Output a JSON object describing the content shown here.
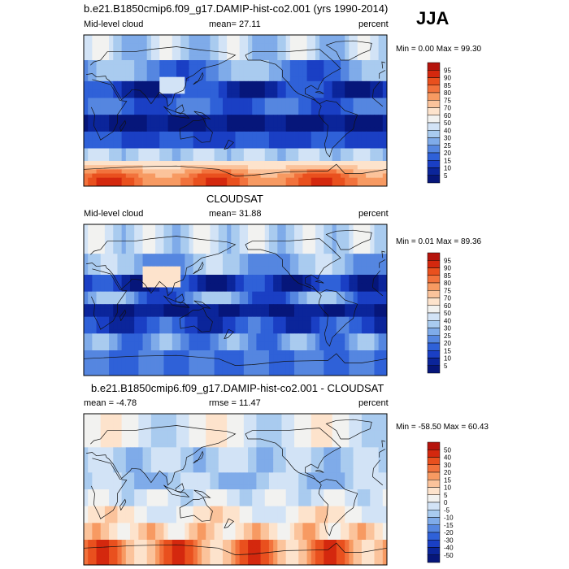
{
  "season": "JJA",
  "chart_data": [
    {
      "type": "heatmap",
      "title": "b.e21.B1850cmip6.f09_g17.DAMIP-hist-co2.001 (yrs 1990-2014)",
      "left_label": "Mid-level cloud",
      "center_label": "mean=  27.11",
      "right_label": "percent",
      "minmax": "Min =   0.00 Max =  99.30",
      "min": 0.0,
      "max": 99.3,
      "mean": 27.11,
      "colorbar_labels": [
        "95",
        "90",
        "85",
        "80",
        "75",
        "70",
        "60",
        "50",
        "40",
        "30",
        "25",
        "20",
        "15",
        "10",
        "5"
      ],
      "colorbar_colors": [
        "#b5140c",
        "#d4280e",
        "#e9501e",
        "#f2723c",
        "#f79a62",
        "#fbc39b",
        "#fde3cc",
        "#f2f2f0",
        "#d2e3f6",
        "#a9cbef",
        "#7fabe9",
        "#5586e0",
        "#2f61d8",
        "#1a3fc4",
        "#0b259a",
        "#06167a"
      ]
    },
    {
      "type": "heatmap",
      "title": "CLOUDSAT",
      "left_label": "Mid-level cloud",
      "center_label": "mean=  31.88",
      "right_label": "percent",
      "minmax": "Min =   0.01 Max =  89.36",
      "min": 0.01,
      "max": 89.36,
      "mean": 31.88,
      "colorbar_labels": [
        "95",
        "90",
        "85",
        "80",
        "75",
        "70",
        "60",
        "50",
        "40",
        "30",
        "25",
        "20",
        "15",
        "10",
        "5"
      ],
      "colorbar_colors": [
        "#b5140c",
        "#d4280e",
        "#e9501e",
        "#f2723c",
        "#f79a62",
        "#fbc39b",
        "#fde3cc",
        "#f2f2f0",
        "#d2e3f6",
        "#a9cbef",
        "#7fabe9",
        "#5586e0",
        "#2f61d8",
        "#1a3fc4",
        "#0b259a",
        "#06167a"
      ]
    },
    {
      "type": "heatmap",
      "title": "b.e21.B1850cmip6.f09_g17.DAMIP-hist-co2.001 - CLOUDSAT",
      "left_label": "mean =  -4.78",
      "center_label": "rmse =  11.47",
      "right_label": "percent",
      "minmax": "Min = -58.50 Max =  60.43",
      "min": -58.5,
      "max": 60.43,
      "mean": -4.78,
      "rmse": 11.47,
      "colorbar_labels": [
        "50",
        "40",
        "30",
        "20",
        "15",
        "10",
        "5",
        "0",
        "-5",
        "-10",
        "-15",
        "-20",
        "-30",
        "-40",
        "-50"
      ],
      "colorbar_colors": [
        "#b5140c",
        "#d4280e",
        "#e9501e",
        "#f2723c",
        "#f79a62",
        "#fbc39b",
        "#fde3cc",
        "#f2f2f0",
        "#d2e3f6",
        "#a9cbef",
        "#7fabe9",
        "#5586e0",
        "#2f61d8",
        "#1a3fc4",
        "#0b259a",
        "#06167a"
      ]
    }
  ]
}
